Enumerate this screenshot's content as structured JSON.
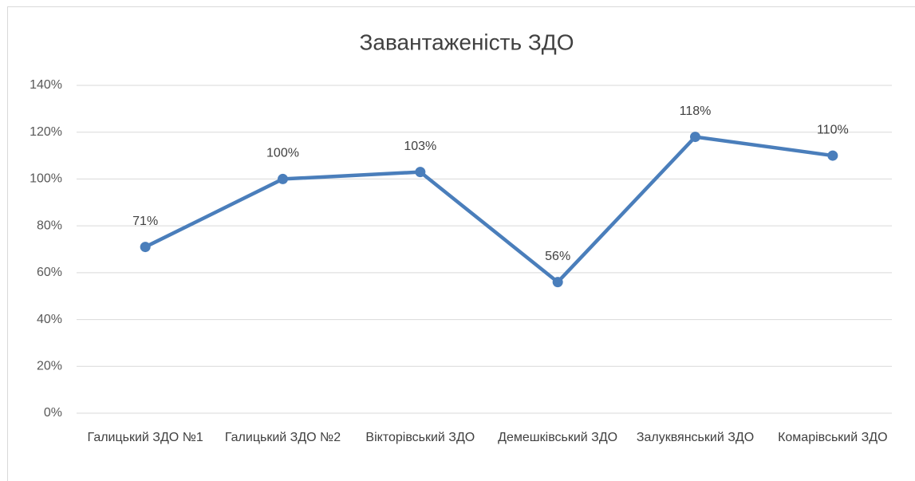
{
  "chart_data": {
    "type": "line",
    "title": "Завантаженість ЗДО",
    "categories": [
      "Галицький ЗДО №1",
      "Галицький ЗДО №2",
      "Вікторівський ЗДО",
      "Демешківський ЗДО",
      "Залуквянський ЗДО",
      "Комарівський ЗДО"
    ],
    "series": [
      {
        "name": "Завантаженість ЗДО",
        "color": "#4a7ebb",
        "values": [
          71,
          100,
          103,
          56,
          118,
          110
        ],
        "value_labels": [
          "71%",
          "100%",
          "103%",
          "56%",
          "118%",
          "110%"
        ]
      }
    ],
    "ylim": [
      0,
      140
    ],
    "yticks": [
      {
        "value": 0,
        "label": "0%"
      },
      {
        "value": 20,
        "label": "20%"
      },
      {
        "value": 40,
        "label": "40%"
      },
      {
        "value": 60,
        "label": "60%"
      },
      {
        "value": 80,
        "label": "80%"
      },
      {
        "value": 100,
        "label": "100%"
      },
      {
        "value": 120,
        "label": "120%"
      },
      {
        "value": 140,
        "label": "140%"
      }
    ],
    "grid": true
  }
}
